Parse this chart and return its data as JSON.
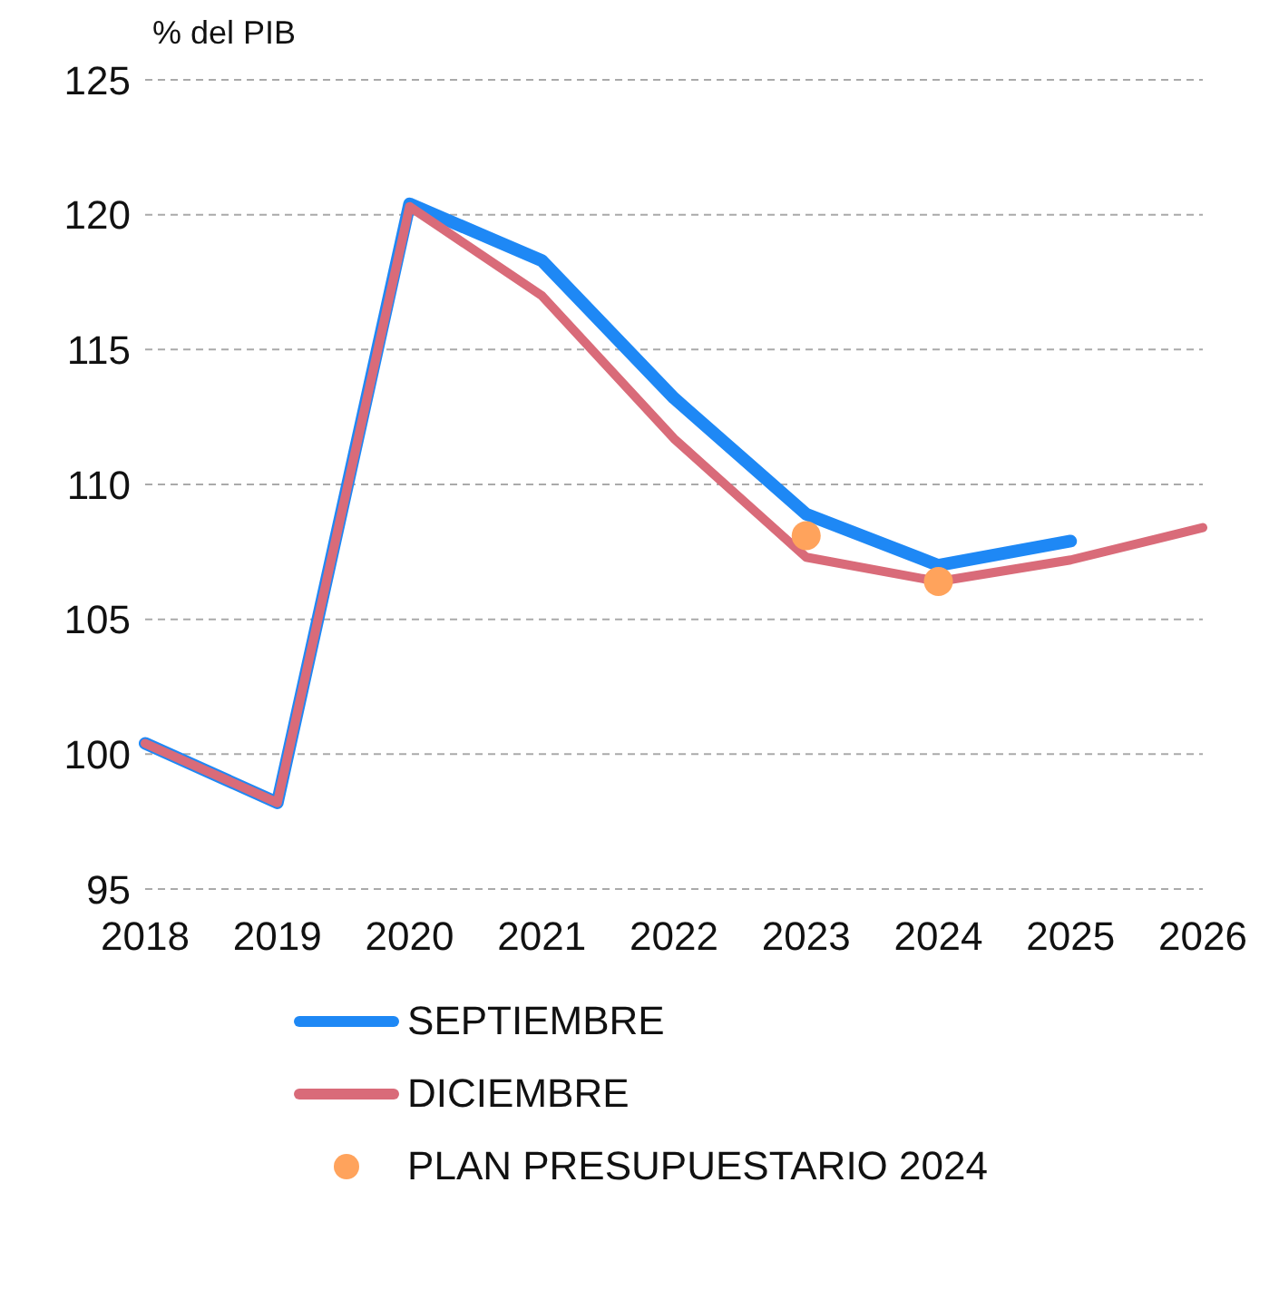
{
  "chart_data": {
    "type": "line",
    "ylabel": "% del PIB",
    "categories": [
      "2018",
      "2019",
      "2020",
      "2021",
      "2022",
      "2023",
      "2024",
      "2025",
      "2026"
    ],
    "series": [
      {
        "name": "SEPTIEMBRE",
        "color": "#1e88f5",
        "values": [
          100.4,
          98.2,
          120.4,
          118.3,
          113.2,
          108.9,
          107.0,
          107.9,
          null
        ]
      },
      {
        "name": "DICIEMBRE",
        "color": "#d96b79",
        "values": [
          100.4,
          98.2,
          120.3,
          117.0,
          111.7,
          107.3,
          106.4,
          107.2,
          108.4
        ]
      },
      {
        "name": "PLAN PRESUPUESTARIO 2024",
        "type": "scatter",
        "marker": "circle",
        "color": "#ffa35c",
        "values": [
          null,
          null,
          null,
          null,
          null,
          108.1,
          106.4,
          null,
          null
        ]
      }
    ],
    "ylim": [
      95,
      125
    ],
    "yticks": [
      95,
      100,
      105,
      110,
      115,
      120,
      125
    ],
    "grid": "y",
    "legend": "bottom",
    "marker": "none",
    "line_style": "solid"
  }
}
